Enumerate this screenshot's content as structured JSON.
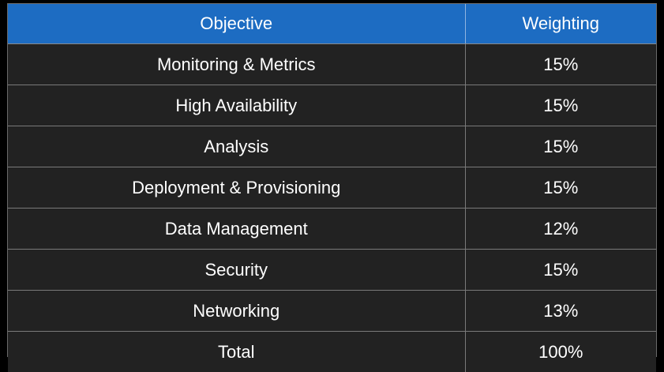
{
  "table": {
    "headers": {
      "objective": "Objective",
      "weighting": "Weighting"
    },
    "rows": [
      {
        "objective": "Monitoring & Metrics",
        "weighting": "15%"
      },
      {
        "objective": "High Availability",
        "weighting": "15%"
      },
      {
        "objective": "Analysis",
        "weighting": "15%"
      },
      {
        "objective": "Deployment & Provisioning",
        "weighting": "15%"
      },
      {
        "objective": "Data Management",
        "weighting": "12%"
      },
      {
        "objective": "Security",
        "weighting": "15%"
      },
      {
        "objective": "Networking",
        "weighting": "13%"
      },
      {
        "objective": "Total",
        "weighting": "100%"
      }
    ]
  },
  "colors": {
    "header_background": "#1d6cc2",
    "body_background": "#222222",
    "page_background": "#000000",
    "text": "#ffffff",
    "grid_lines": "#7a7a7a"
  }
}
